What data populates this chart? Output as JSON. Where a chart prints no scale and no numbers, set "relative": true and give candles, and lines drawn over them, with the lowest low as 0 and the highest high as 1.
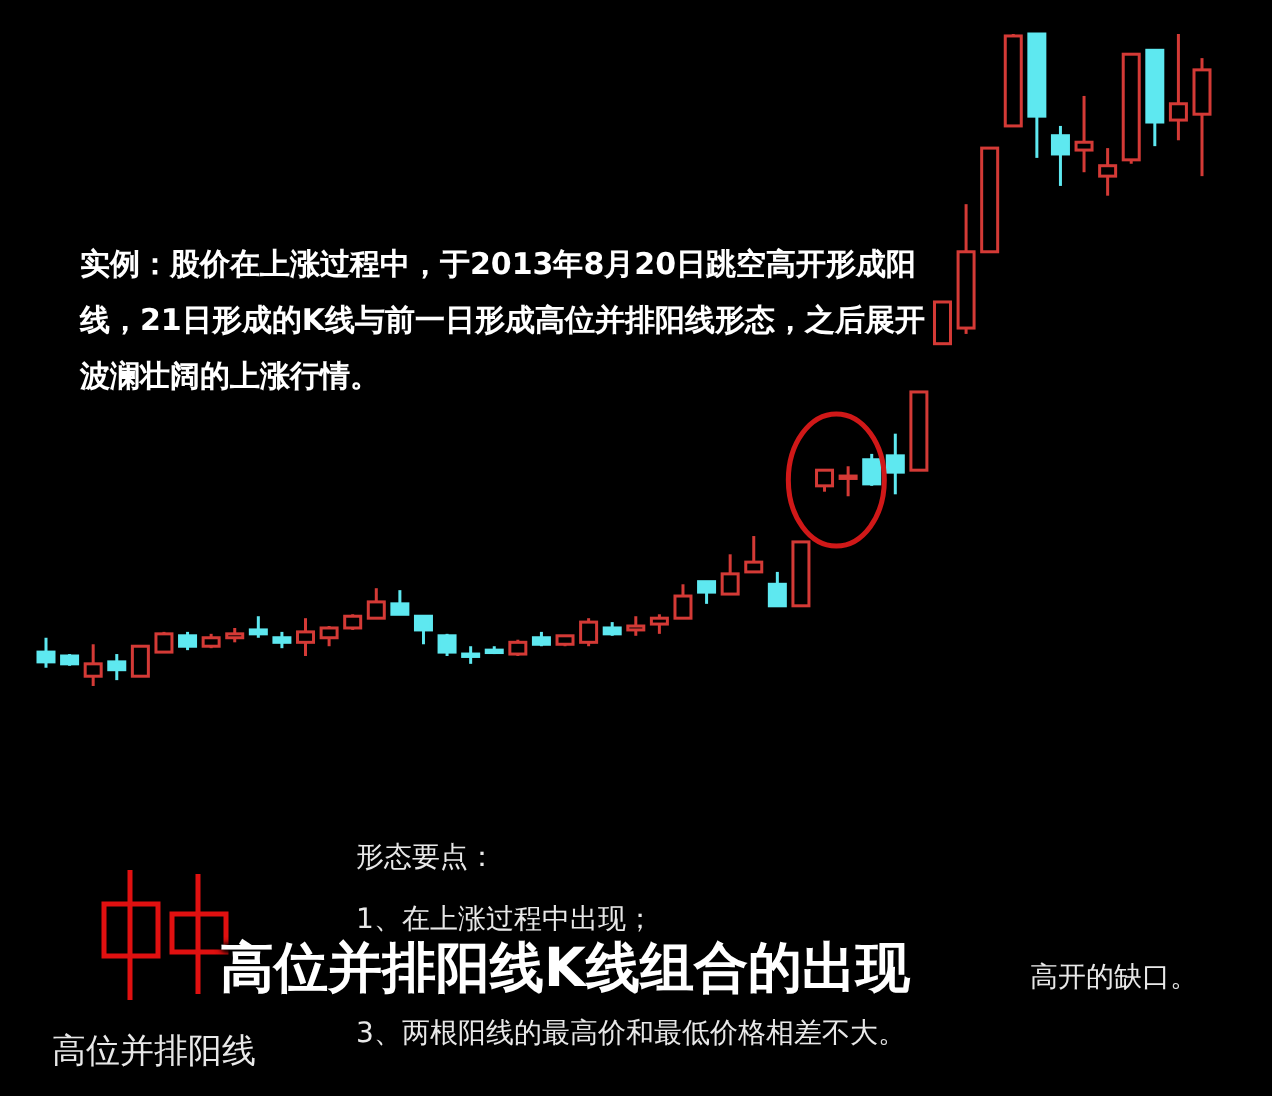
{
  "chart_data": {
    "type": "candlestick",
    "relative": true,
    "title": "高位并排阳线K线组合的出现",
    "annotations": [
      "实例：股价在上涨过程中，于2013年8月20日跳空高开形成阳线，21日形成的K线与前一日形成高位并排阳线形态，之后展开波澜壮阔的上涨行情。",
      "形态要点：",
      "1、在上涨过程中出现；",
      "高开的缺口。",
      "3、两根阳线的最高价和最低价格相差不大。",
      "高位并排阳线"
    ],
    "categories": [
      null,
      null,
      null,
      null,
      null,
      null,
      null,
      null,
      null,
      null,
      null,
      null,
      null,
      null,
      null,
      null,
      null,
      null,
      null,
      null,
      null,
      null,
      null,
      null,
      null,
      null,
      null,
      null,
      null,
      null,
      null,
      null,
      null,
      null,
      null,
      null,
      null,
      null,
      null,
      null,
      null,
      null,
      null,
      null,
      null,
      null,
      null,
      null,
      null,
      null
    ],
    "ohlc": [
      [
        0.052,
        0.074,
        0.028,
        0.037
      ],
      [
        0.046,
        0.049,
        0.031,
        0.034
      ],
      [
        0.015,
        0.064,
        0,
        0.034
      ],
      [
        0.037,
        0.049,
        0.009,
        0.025
      ],
      [
        0.015,
        0.061,
        0.015,
        0.061
      ],
      [
        0.052,
        0.083,
        0.052,
        0.08
      ],
      [
        0.077,
        0.083,
        0.055,
        0.061
      ],
      [
        0.061,
        0.08,
        0.058,
        0.074
      ],
      [
        0.074,
        0.089,
        0.067,
        0.08
      ],
      [
        0.086,
        0.107,
        0.074,
        0.08
      ],
      [
        0.074,
        0.083,
        0.058,
        0.067
      ],
      [
        0.067,
        0.104,
        0.046,
        0.083
      ],
      [
        0.074,
        0.092,
        0.061,
        0.089
      ],
      [
        0.089,
        0.11,
        0.086,
        0.107
      ],
      [
        0.104,
        0.15,
        0.104,
        0.129
      ],
      [
        0.126,
        0.147,
        0.11,
        0.11
      ],
      [
        0.107,
        0.107,
        0.064,
        0.086
      ],
      [
        0.077,
        0.08,
        0.046,
        0.052
      ],
      [
        0.049,
        0.061,
        0.034,
        0.046
      ],
      [
        0.055,
        0.061,
        0.049,
        0.052
      ],
      [
        0.049,
        0.071,
        0.046,
        0.067
      ],
      [
        0.074,
        0.083,
        0.061,
        0.064
      ],
      [
        0.064,
        0.077,
        0.061,
        0.077
      ],
      [
        0.067,
        0.104,
        0.061,
        0.098
      ],
      [
        0.089,
        0.098,
        0.077,
        0.08
      ],
      [
        0.086,
        0.107,
        0.077,
        0.092
      ],
      [
        0.095,
        0.11,
        0.08,
        0.104
      ],
      [
        0.104,
        0.156,
        0.104,
        0.138
      ],
      [
        0.16,
        0.16,
        0.126,
        0.144
      ],
      [
        0.141,
        0.202,
        0.141,
        0.172
      ],
      [
        0.175,
        0.23,
        0.175,
        0.19
      ],
      [
        0.156,
        0.175,
        0.123,
        0.123
      ],
      [
        0.123,
        0.221,
        0.123,
        0.221
      ],
      [
        0.307,
        0.331,
        0.298,
        0.331
      ],
      [
        0.319,
        0.337,
        0.291,
        0.322
      ],
      [
        0.347,
        0.356,
        0.307,
        0.31
      ],
      [
        0.353,
        0.387,
        0.294,
        0.328
      ],
      [
        0.331,
        0.451,
        0.331,
        0.451
      ],
      [
        0.525,
        0.589,
        0.525,
        0.589
      ],
      [
        0.549,
        0.739,
        0.54,
        0.666
      ],
      [
        0.666,
        0.825,
        0.666,
        0.825
      ],
      [
        0.859,
        1,
        0.859,
        0.997
      ],
      [
        1,
        1,
        0.81,
        0.874
      ],
      [
        0.844,
        0.859,
        0.767,
        0.816
      ],
      [
        0.822,
        0.905,
        0.788,
        0.834
      ],
      [
        0.782,
        0.825,
        0.752,
        0.798
      ],
      [
        0.807,
        0.969,
        0.801,
        0.969
      ],
      [
        0.975,
        0.975,
        0.828,
        0.865
      ],
      [
        0.868,
        1,
        0.837,
        0.893
      ],
      [
        0.877,
        0.963,
        0.782,
        0.945
      ]
    ],
    "colors": [
      "#5ee8f0",
      "#5ee8f0",
      "#d43a36",
      "#5ee8f0",
      "#d43a36",
      "#d43a36",
      "#5ee8f0",
      "#d43a36",
      "#d43a36",
      "#5ee8f0",
      "#5ee8f0",
      "#d43a36",
      "#d43a36",
      "#d43a36",
      "#d43a36",
      "#5ee8f0",
      "#5ee8f0",
      "#5ee8f0",
      "#5ee8f0",
      "#5ee8f0",
      "#d43a36",
      "#5ee8f0",
      "#d43a36",
      "#d43a36",
      "#5ee8f0",
      "#d43a36",
      "#d43a36",
      "#d43a36",
      "#5ee8f0",
      "#d43a36",
      "#d43a36",
      "#5ee8f0",
      "#d43a36",
      "#d43a36",
      "#d43a36",
      "#5ee8f0",
      "#5ee8f0",
      "#d43a36",
      "#d43a36",
      "#d43a36",
      "#d43a36",
      "#d43a36",
      "#5ee8f0",
      "#5ee8f0",
      "#d43a36",
      "#d43a36",
      "#d43a36",
      "#5ee8f0",
      "#d43a36",
      "#d43a36"
    ]
  }
}
